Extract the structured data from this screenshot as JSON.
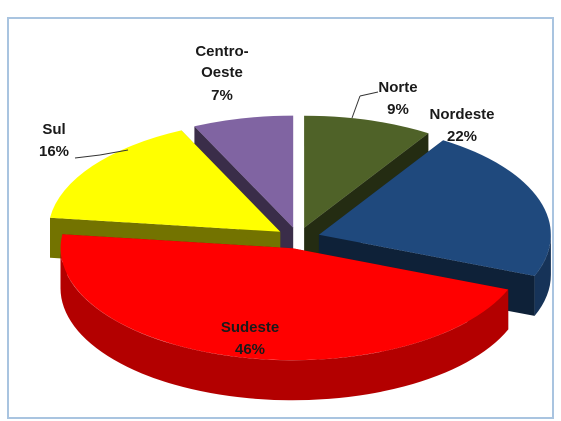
{
  "chart_data": {
    "type": "pie3d",
    "categories": [
      "Norte",
      "Nordeste",
      "Sudeste",
      "Sul",
      "Centro-Oeste"
    ],
    "values": [
      9,
      22,
      46,
      16,
      7
    ],
    "value_labels": [
      "9%",
      "22%",
      "46%",
      "16%",
      "7%"
    ],
    "colors": [
      "#4f6228",
      "#1f497d",
      "#ff0000",
      "#ffff00",
      "#8064a2"
    ]
  }
}
